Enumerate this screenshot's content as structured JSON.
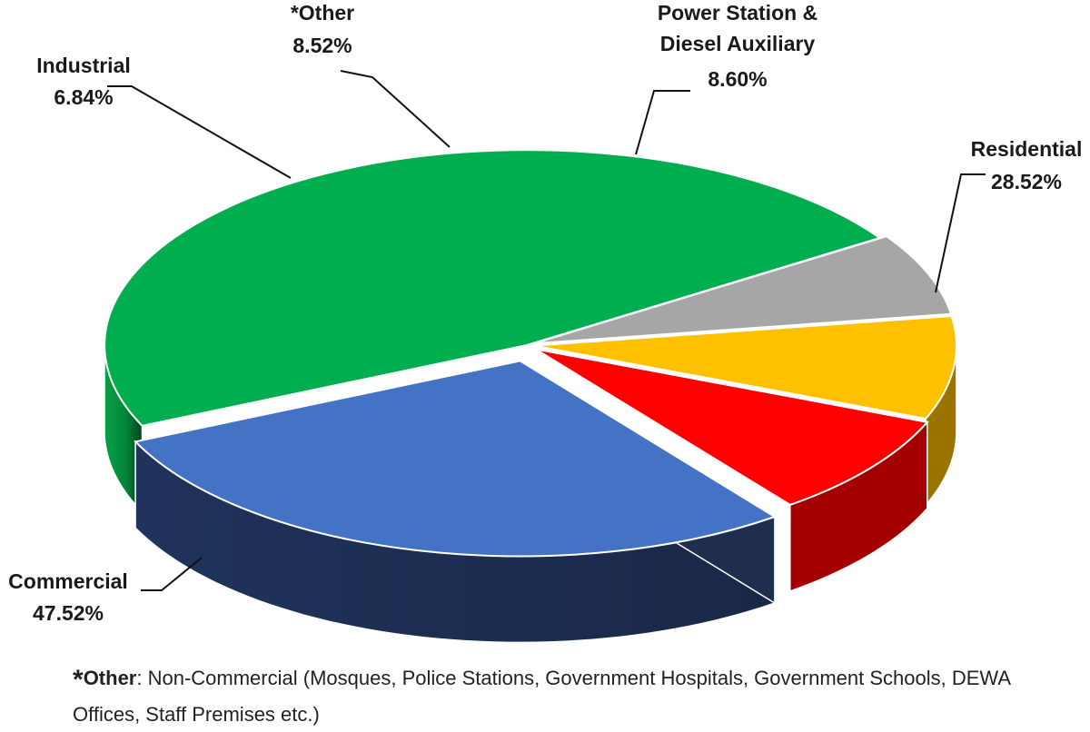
{
  "chart_data": {
    "type": "pie",
    "title": "",
    "slices": [
      {
        "category": "Commercial",
        "value": 47.52,
        "label": "47.52%",
        "color": "#00AD4F",
        "dark": "#00652C"
      },
      {
        "category": "Industrial",
        "value": 6.84,
        "label": "6.84%",
        "color": "#A6A6A6",
        "dark": "#5E5E5E"
      },
      {
        "category": "*Other",
        "value": 8.52,
        "label": "8.52%",
        "color": "#FFC000",
        "dark": "#9A7300"
      },
      {
        "category": "Power Station & Diesel Auxiliary",
        "value": 8.6,
        "label": "8.60%",
        "color": "#FF0000",
        "dark": "#A40000"
      },
      {
        "category": "Residential",
        "value": 28.52,
        "label": "28.52%",
        "color": "#4472C4",
        "dark": "#1F2D4F"
      }
    ],
    "legend": "none",
    "style": "3d-exploded"
  },
  "footnote": {
    "star": "*",
    "key": "Other",
    "text": ": Non-Commercial (Mosques, Police Stations, Government Hospitals, Government Schools, DEWA Offices, Staff Premises etc.)"
  }
}
